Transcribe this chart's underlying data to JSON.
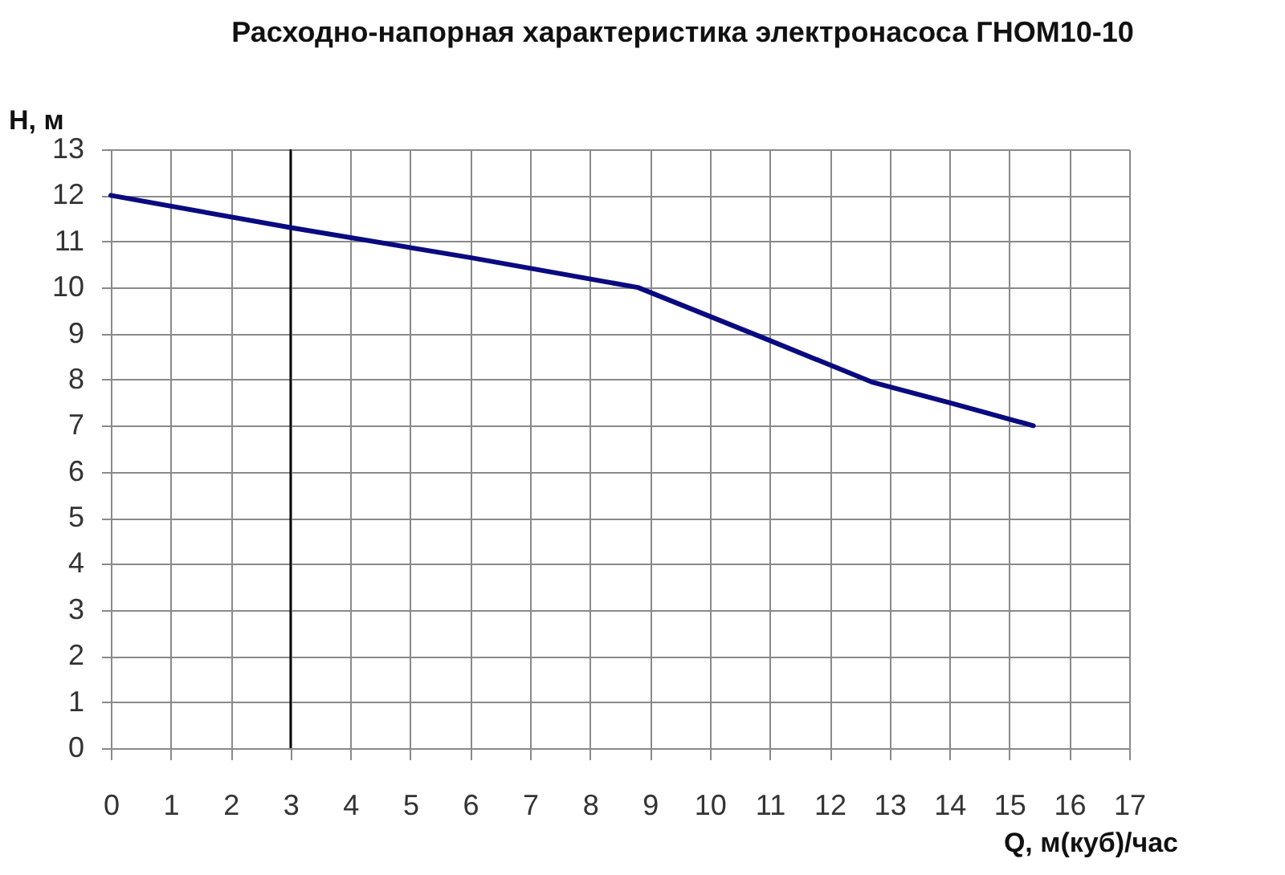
{
  "chart_data": {
    "type": "line",
    "title": "Расходно-напорная характеристика электронасоса ГНОМ10-10",
    "xlabel": "Q, м(куб)/час",
    "ylabel": "H, м",
    "x": [
      0,
      3,
      6,
      8.8,
      11,
      12.7,
      14,
      15.4
    ],
    "values": [
      12,
      11.3,
      10.65,
      10,
      8.85,
      7.95,
      7.5,
      7
    ],
    "color": "#0a0a80",
    "xlim": [
      0,
      17
    ],
    "xticks": [
      0,
      1,
      2,
      3,
      4,
      5,
      6,
      7,
      8,
      9,
      10,
      11,
      12,
      13,
      14,
      15,
      16,
      17
    ],
    "ylim": [
      0,
      13
    ],
    "yticks": [
      0,
      1,
      2,
      3,
      4,
      5,
      6,
      7,
      8,
      9,
      10,
      11,
      12,
      13
    ],
    "grid": true,
    "ref_lines": [
      {
        "axis": "x",
        "value": 3,
        "color": "#000000"
      }
    ]
  }
}
